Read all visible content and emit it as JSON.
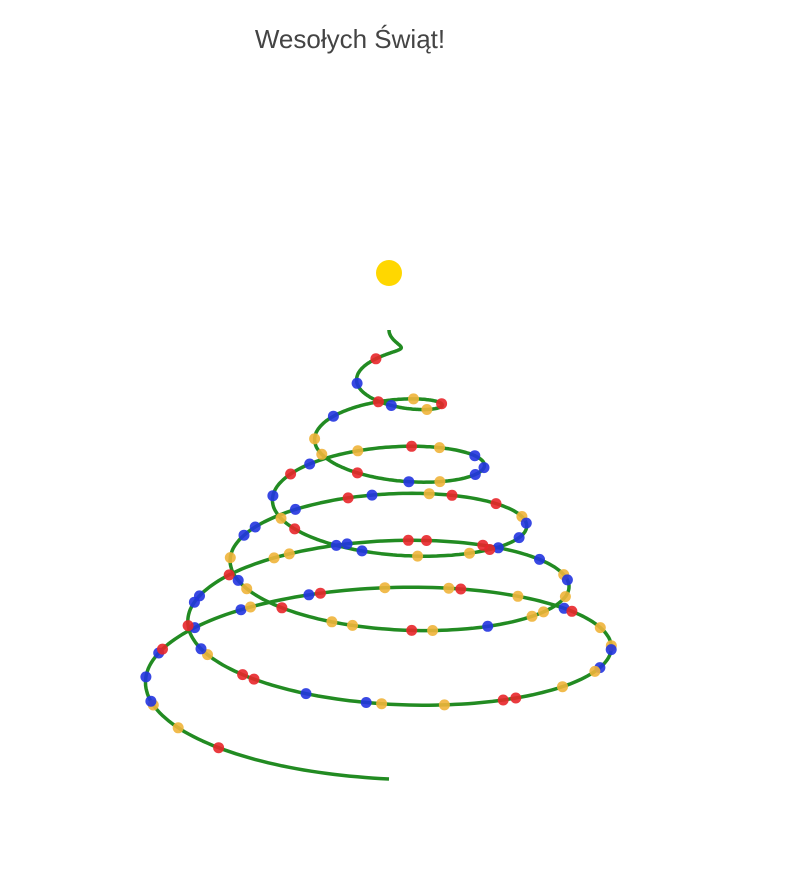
{
  "chart_data": {
    "type": "scatter",
    "title": "Wesołych Świąt!",
    "colors": {
      "garland": "#228B22",
      "star": "#FFD700",
      "ornament_red": "#E8262A",
      "ornament_blue": "#2234E0",
      "ornament_gold": "#F0B43A",
      "background": "#FFFFFF"
    },
    "spiral": {
      "turns": 6,
      "top_height": 1.0,
      "base_radius": 1.0
    },
    "star": {
      "x": 0,
      "y": 0,
      "z": 1.12
    },
    "ornament_sequence": [
      "red",
      "gold",
      "gold",
      "blue",
      "blue",
      "blue",
      "red",
      "blue",
      "blue",
      "gold",
      "blue",
      "red",
      "gold",
      "gold",
      "red",
      "gold",
      "blue",
      "red",
      "gold",
      "gold",
      "blue",
      "blue",
      "gold",
      "gold",
      "red",
      "red",
      "gold",
      "gold",
      "blue",
      "blue",
      "red",
      "red",
      "gold",
      "blue",
      "red",
      "blue",
      "blue",
      "red",
      "gold",
      "gold",
      "blue",
      "red",
      "red",
      "red",
      "blue",
      "blue",
      "gold",
      "blue",
      "gold",
      "gold",
      "gold",
      "blue",
      "gold",
      "red",
      "gold",
      "gold",
      "red",
      "gold",
      "blue",
      "gold",
      "blue",
      "blue",
      "blue",
      "red",
      "blue",
      "gold",
      "red",
      "red",
      "gold",
      "blue",
      "blue",
      "red",
      "gold",
      "gold",
      "blue",
      "blue",
      "red",
      "gold",
      "blue",
      "red",
      "blue",
      "gold",
      "red",
      "gold",
      "blue",
      "blue",
      "blue",
      "gold",
      "blue",
      "red",
      "gold",
      "gold",
      "blue",
      "red",
      "gold",
      "red",
      "gold",
      "blue",
      "blue",
      "red"
    ]
  }
}
